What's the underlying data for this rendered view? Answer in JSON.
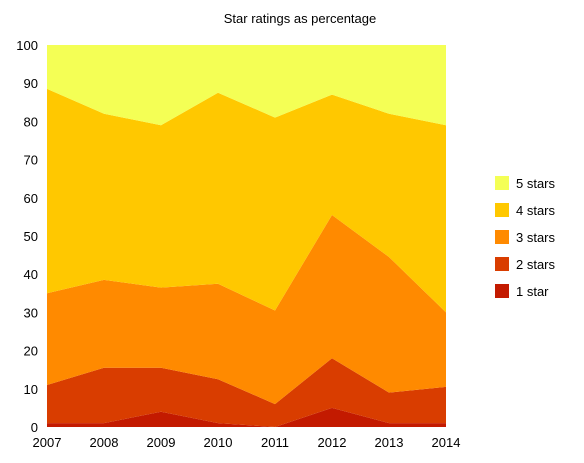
{
  "chart_data": {
    "type": "area",
    "stacked": true,
    "title": "Star ratings as percentage",
    "xlabel": "",
    "ylabel": "",
    "x": [
      "2007",
      "2008",
      "2009",
      "2010",
      "2011",
      "2012",
      "2013",
      "2014"
    ],
    "ylim": [
      0,
      100
    ],
    "yticks": [
      "0",
      "10",
      "20",
      "30",
      "40",
      "50",
      "60",
      "70",
      "80",
      "90",
      "100"
    ],
    "grid": false,
    "legend_position": "right",
    "series": [
      {
        "name": "1 star",
        "color": "#c31a00",
        "values": [
          1,
          1,
          4,
          1,
          0,
          5,
          1,
          1
        ]
      },
      {
        "name": "2 stars",
        "color": "#d93d00",
        "values": [
          10,
          14.5,
          11.5,
          11.5,
          6,
          13,
          8,
          9.5
        ]
      },
      {
        "name": "3 stars",
        "color": "#ff8a00",
        "values": [
          24,
          23,
          21,
          25,
          24.5,
          37.5,
          35.5,
          19.5
        ]
      },
      {
        "name": "4 stars",
        "color": "#ffc800",
        "values": [
          53.5,
          43.5,
          42.5,
          50,
          50.5,
          31.5,
          37.5,
          49
        ]
      },
      {
        "name": "5 stars",
        "color": "#f4ff55",
        "values": [
          11.5,
          18,
          21,
          12.5,
          19,
          13,
          18,
          21
        ]
      }
    ]
  }
}
